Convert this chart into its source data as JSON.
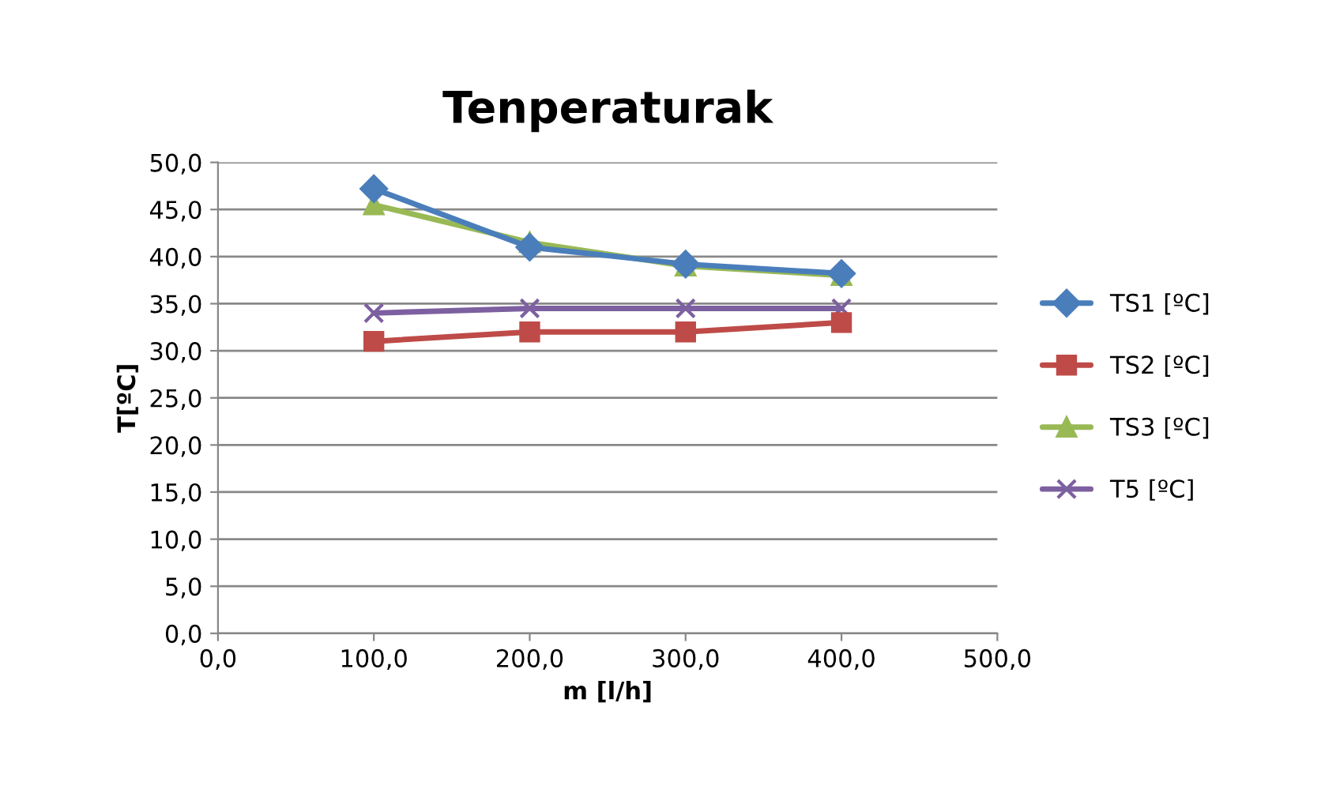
{
  "chart_data": {
    "type": "line",
    "title": "Tenperaturak",
    "xlabel": "m [l/h]",
    "ylabel": "T[ºC]",
    "x": [
      100,
      200,
      300,
      400
    ],
    "series": [
      {
        "name": "TS1 [ºC]",
        "color": "#4a7ebb",
        "marker": "diamond",
        "values": [
          47.2,
          41.0,
          39.2,
          38.2
        ]
      },
      {
        "name": "TS2 [ºC]",
        "color": "#be4b48",
        "marker": "square",
        "values": [
          31.0,
          32.0,
          32.0,
          33.0
        ]
      },
      {
        "name": "TS3 [ºC]",
        "color": "#98b954",
        "marker": "triangle",
        "values": [
          45.5,
          41.5,
          39.0,
          38.0
        ]
      },
      {
        "name": "T5 [ºC]",
        "color": "#7d60a0",
        "marker": "cross",
        "values": [
          34.0,
          34.5,
          34.5,
          34.5
        ]
      }
    ],
    "xlim": [
      0,
      500
    ],
    "xticks": [
      {
        "value": 0,
        "label": "0,0"
      },
      {
        "value": 100,
        "label": "100,0"
      },
      {
        "value": 200,
        "label": "200,0"
      },
      {
        "value": 300,
        "label": "300,0"
      },
      {
        "value": 400,
        "label": "400,0"
      },
      {
        "value": 500,
        "label": "500,0"
      }
    ],
    "ylim": [
      0,
      50
    ],
    "yticks": [
      {
        "value": 0,
        "label": "0,0"
      },
      {
        "value": 5,
        "label": "5,0"
      },
      {
        "value": 10,
        "label": "10,0"
      },
      {
        "value": 15,
        "label": "15,0"
      },
      {
        "value": 20,
        "label": "20,0"
      },
      {
        "value": 25,
        "label": "25,0"
      },
      {
        "value": 30,
        "label": "30,0"
      },
      {
        "value": 35,
        "label": "35,0"
      },
      {
        "value": 40,
        "label": "40,0"
      },
      {
        "value": 45,
        "label": "45,0"
      },
      {
        "value": 50,
        "label": "50,0"
      }
    ],
    "grid": "y",
    "legend": "right",
    "line_style": "solid"
  }
}
